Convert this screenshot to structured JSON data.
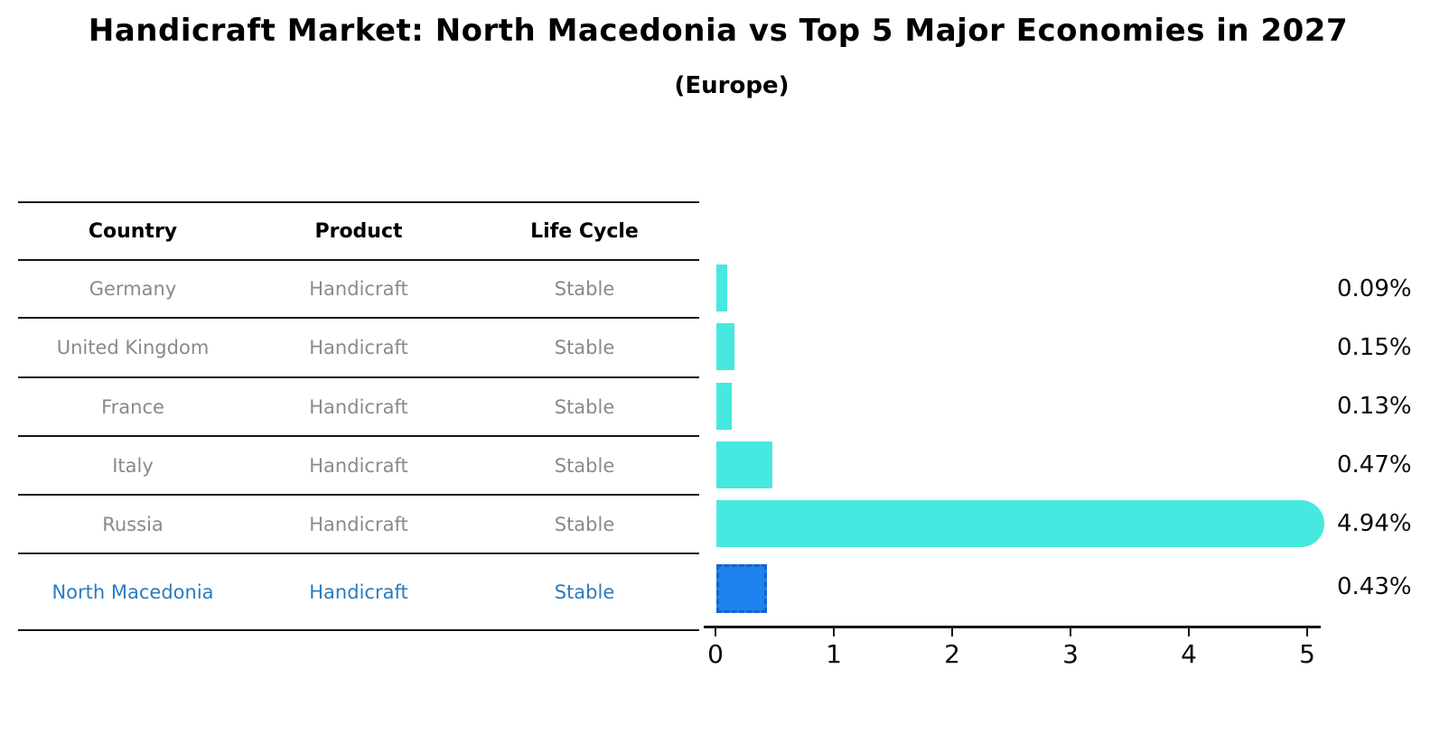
{
  "title": "Handicraft Market: North Macedonia vs Top 5 Major Economies in 2027",
  "subtitle": "(Europe)",
  "table": {
    "headers": [
      "Country",
      "Product",
      "Life Cycle"
    ],
    "rows": [
      {
        "country": "Germany",
        "product": "Handicraft",
        "life_cycle": "Stable",
        "highlight": false
      },
      {
        "country": "United Kingdom",
        "product": "Handicraft",
        "life_cycle": "Stable",
        "highlight": false
      },
      {
        "country": "France",
        "product": "Handicraft",
        "life_cycle": "Stable",
        "highlight": false
      },
      {
        "country": "Italy",
        "product": "Handicraft",
        "life_cycle": "Stable",
        "highlight": false
      },
      {
        "country": "Russia",
        "product": "Handicraft",
        "life_cycle": "Stable",
        "highlight": false
      },
      {
        "country": "North Macedonia",
        "product": "Handicraft",
        "life_cycle": "Stable",
        "highlight": true
      }
    ]
  },
  "chart_data": {
    "type": "bar",
    "orientation": "horizontal",
    "title": "Handicraft Market: North Macedonia vs Top 5 Major Economies in 2027",
    "subtitle": "(Europe)",
    "categories": [
      "Germany",
      "United Kingdom",
      "France",
      "Italy",
      "Russia",
      "North Macedonia"
    ],
    "values": [
      0.09,
      0.15,
      0.13,
      0.47,
      4.94,
      0.43
    ],
    "value_labels": [
      "0.09%",
      "0.15%",
      "0.13%",
      "0.47%",
      "4.94%",
      "0.43%"
    ],
    "x_ticks": [
      0,
      1,
      2,
      3,
      4,
      5
    ],
    "xlim": [
      0,
      5.2
    ],
    "grid": false,
    "legend": false,
    "highlight_index": 5,
    "bar_color": "#46e8e0",
    "highlight_bar_color": "#1e82ee",
    "highlight_text_color": "#2b7bbe"
  }
}
